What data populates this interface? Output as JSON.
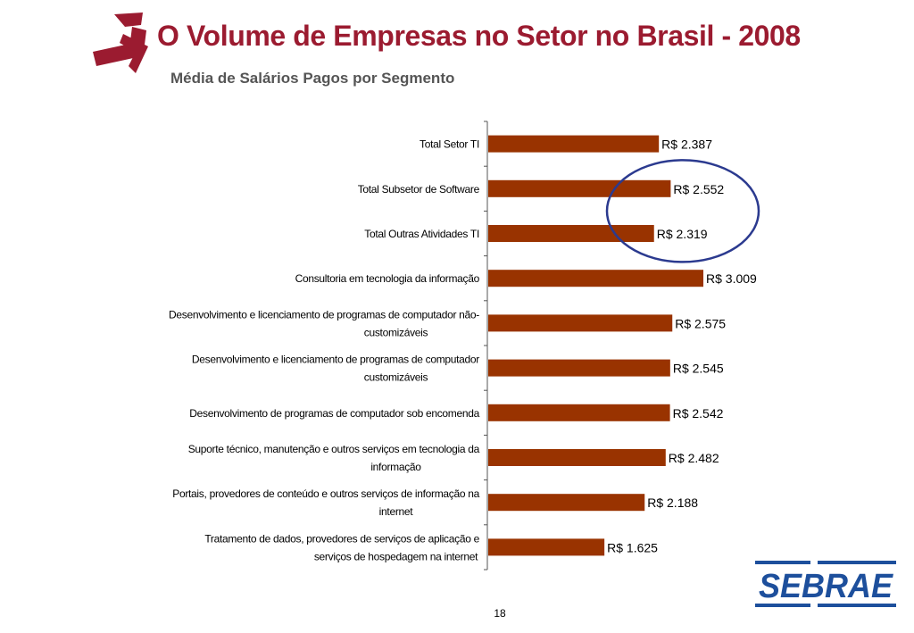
{
  "title": "O Volume de Empresas no Setor no Brasil - 2008",
  "subtitle": "Média de Salários Pagos por Segmento",
  "page_number": "18",
  "logo": {
    "text": "SEBRAE",
    "icon": "sebrae-logo"
  },
  "colors": {
    "title": "#9b1b30",
    "bar": "#993300",
    "highlight_circle": "#2b3a8f",
    "logo_blue": "#1d4f9c"
  },
  "chart_data": {
    "type": "bar",
    "orientation": "horizontal",
    "categories": [
      "Total Setor TI",
      "Total Subsetor de Software",
      "Total Outras Atividades TI",
      "Consultoria em tecnologia da informação",
      "Desenvolvimento e licenciamento de programas de computador não-customizáveis",
      "Desenvolvimento e licenciamento de programas de computador customizáveis",
      "Desenvolvimento de programas de computador sob encomenda",
      "Suporte técnico, manutenção e outros serviços em tecnologia da informação",
      "Portais, provedores de conteúdo e outros serviços de informação na internet",
      "Tratamento de dados, provedores de serviços de aplicação e serviços de hospedagem na internet"
    ],
    "category_lines": [
      [
        "Total Setor TI"
      ],
      [
        "Total Subsetor de Software"
      ],
      [
        "Total Outras Atividades TI"
      ],
      [
        "Consultoria em tecnologia da informação"
      ],
      [
        "Desenvolvimento e licenciamento de programas de computador não-",
        "customizáveis"
      ],
      [
        "Desenvolvimento e licenciamento de programas de computador",
        "customizáveis"
      ],
      [
        "Desenvolvimento de programas de computador sob encomenda"
      ],
      [
        "Suporte técnico, manutenção e outros serviços em tecnologia da",
        "informação"
      ],
      [
        "Portais, provedores de conteúdo e outros serviços de informação na",
        "internet"
      ],
      [
        "Tratamento de dados, provedores de serviços de aplicação e",
        "serviços de hospedagem na internet"
      ]
    ],
    "values": [
      2387,
      2552,
      2319,
      3009,
      2575,
      2545,
      2542,
      2482,
      2188,
      1625
    ],
    "data_labels": [
      "R$ 2.387",
      "R$ 2.552",
      "R$ 2.319",
      "R$ 3.009",
      "R$ 2.575",
      "R$ 2.545",
      "R$ 2.542",
      "R$ 2.482",
      "R$ 2.188",
      "R$ 1.625"
    ],
    "xlim": [
      0,
      3009
    ],
    "xlabel": "",
    "ylabel": "",
    "grid": false,
    "legend": "none",
    "annotation": {
      "shape": "ellipse",
      "highlights": [
        "Total Subsetor de Software",
        "Total Outras Atividades TI"
      ]
    }
  }
}
